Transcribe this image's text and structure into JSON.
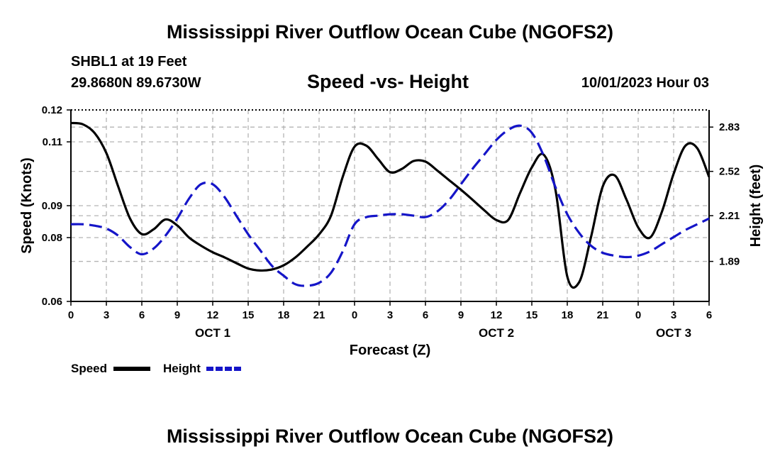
{
  "page": {
    "title": "Mississippi River Outflow Ocean Cube (NGOFS2)",
    "bottom_title": "Mississippi River Outflow Ocean Cube (NGOFS2)",
    "station": "SHBL1 at 19 Feet",
    "coords": "29.8680N  89.6730W",
    "datetime": "10/01/2023 Hour 03"
  },
  "chart_data": {
    "type": "line",
    "title": "Speed -vs- Height",
    "xlabel": "Forecast (Z)",
    "ylabel": "Speed (Knots)",
    "y2label": "Height (feet)",
    "xlim": [
      0,
      54
    ],
    "ylim": [
      0.06,
      0.12
    ],
    "y2lim": [
      1.61,
      2.95
    ],
    "yticks": [
      0.06,
      0.08,
      0.09,
      0.11,
      0.12
    ],
    "y2ticks": [
      1.89,
      2.21,
      2.52,
      2.83
    ],
    "xticks": [
      0,
      3,
      6,
      9,
      12,
      15,
      18,
      21,
      24,
      27,
      30,
      33,
      36,
      39,
      42,
      45,
      48,
      51,
      54
    ],
    "xtick_labels": [
      "0",
      "3",
      "6",
      "9",
      "12",
      "15",
      "18",
      "21",
      "0",
      "3",
      "6",
      "9",
      "12",
      "15",
      "18",
      "21",
      "0",
      "3",
      "6"
    ],
    "day_labels": [
      {
        "hour": 12,
        "label": "OCT 1"
      },
      {
        "hour": 36,
        "label": "OCT 2"
      },
      {
        "hour": 51,
        "label": "OCT 3"
      }
    ],
    "legend": [
      {
        "name": "Speed",
        "color": "#000000",
        "style": "solid"
      },
      {
        "name": "Height",
        "color": "#1515c8",
        "style": "dashed"
      }
    ],
    "series": [
      {
        "name": "Speed",
        "axis": "left",
        "color": "#000000",
        "style": "solid",
        "x": [
          0,
          1,
          2,
          3,
          4,
          5,
          6,
          7,
          8,
          9,
          10,
          11,
          12,
          13,
          14,
          15,
          16,
          17,
          18,
          19,
          20,
          21,
          22,
          23,
          24,
          25,
          26,
          27,
          28,
          29,
          30,
          31,
          32,
          33,
          34,
          35,
          36,
          37,
          38,
          39,
          40,
          41,
          42,
          43,
          44,
          45,
          46,
          47,
          48,
          49,
          50,
          51,
          52,
          53,
          54
        ],
        "values": [
          0.1159,
          0.1155,
          0.1128,
          0.1065,
          0.096,
          0.086,
          0.0811,
          0.0826,
          0.0857,
          0.0838,
          0.08,
          0.0775,
          0.0754,
          0.0738,
          0.072,
          0.0703,
          0.0697,
          0.07,
          0.0713,
          0.0738,
          0.0772,
          0.081,
          0.0868,
          0.099,
          0.1085,
          0.1088,
          0.1046,
          0.1005,
          0.1015,
          0.104,
          0.1038,
          0.101,
          0.098,
          0.095,
          0.0918,
          0.0885,
          0.0855,
          0.0855,
          0.0939,
          0.102,
          0.106,
          0.095,
          0.0678,
          0.066,
          0.08,
          0.096,
          0.0995,
          0.092,
          0.0832,
          0.08,
          0.088,
          0.1,
          0.1088,
          0.108,
          0.099
        ]
      },
      {
        "name": "Height",
        "axis": "right",
        "color": "#1515c8",
        "style": "dashed",
        "x": [
          0,
          1,
          2,
          3,
          4,
          5,
          6,
          7,
          8,
          9,
          10,
          11,
          12,
          13,
          14,
          15,
          16,
          17,
          18,
          19,
          20,
          21,
          22,
          23,
          24,
          25,
          26,
          27,
          28,
          29,
          30,
          31,
          32,
          33,
          34,
          35,
          36,
          37,
          38,
          39,
          40,
          41,
          42,
          43,
          44,
          45,
          46,
          47,
          48,
          49,
          50,
          51,
          52,
          53,
          54
        ],
        "values": [
          2.15,
          2.15,
          2.14,
          2.12,
          2.07,
          1.99,
          1.94,
          1.98,
          2.07,
          2.19,
          2.33,
          2.43,
          2.43,
          2.34,
          2.21,
          2.08,
          1.97,
          1.86,
          1.79,
          1.73,
          1.72,
          1.74,
          1.81,
          1.96,
          2.15,
          2.2,
          2.21,
          2.22,
          2.22,
          2.21,
          2.2,
          2.24,
          2.32,
          2.43,
          2.54,
          2.64,
          2.74,
          2.81,
          2.84,
          2.79,
          2.63,
          2.41,
          2.22,
          2.09,
          2.0,
          1.95,
          1.93,
          1.92,
          1.93,
          1.96,
          2.01,
          2.06,
          2.11,
          2.15,
          2.19
        ]
      }
    ]
  }
}
